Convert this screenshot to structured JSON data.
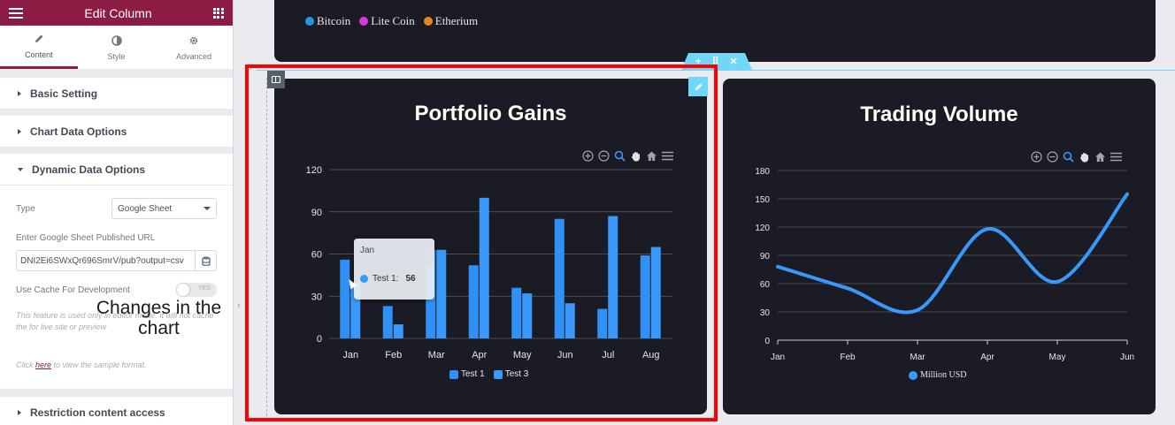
{
  "panel": {
    "title": "Edit Column",
    "tabs": [
      {
        "label": "Content",
        "icon": "pencil-icon"
      },
      {
        "label": "Style",
        "icon": "half-circle-icon"
      },
      {
        "label": "Advanced",
        "icon": "gear-icon"
      }
    ],
    "sections": {
      "basic": "Basic Setting",
      "chart_data": "Chart Data Options",
      "dynamic": "Dynamic Data Options",
      "restriction": "Restriction content access"
    },
    "type_label": "Type",
    "type_value": "Google Sheet",
    "url_label": "Enter Google Sheet Published URL",
    "url_value": "DNI2Ei6SWxQr696SmrV/pub?output=csv",
    "cache_label": "Use Cache For Development",
    "cache_toggle": "YES",
    "help_text": "This feature is used only in editor mode. It will not cache the for live site or preview",
    "sample_prefix": "Click ",
    "sample_link": "here",
    "sample_suffix": " to view the sample format."
  },
  "overlay_caption": "Changes in the chart",
  "top_legend": [
    {
      "label": "Bitcoin",
      "color": "#2596e8"
    },
    {
      "label": "Lite Coin",
      "color": "#d83ad8"
    },
    {
      "label": "Etherium",
      "color": "#e08a1e"
    }
  ],
  "tooltip": {
    "title": "Jan",
    "series": "Test 1:",
    "value": "56"
  },
  "chart_data": [
    {
      "type": "bar",
      "title": "Portfolio Gains",
      "categories": [
        "Jan",
        "Feb",
        "Mar",
        "Apr",
        "May",
        "Jun",
        "Jul",
        "Aug"
      ],
      "ylim": [
        0,
        120
      ],
      "yticks": [
        "0",
        "30",
        "60",
        "90",
        "120"
      ],
      "series": [
        {
          "name": "Test 1",
          "values": [
            56,
            23,
            63,
            52,
            36,
            85,
            21,
            59
          ],
          "color": "#2f90f6"
        },
        {
          "name": "Test 3",
          "values": [
            40,
            10,
            63,
            100,
            32,
            25,
            87,
            65
          ],
          "color": "#3a98fa"
        }
      ]
    },
    {
      "type": "line",
      "title": "Trading Volume",
      "categories": [
        "Jan",
        "Feb",
        "Mar",
        "Apr",
        "May",
        "Jun"
      ],
      "ylim": [
        0,
        180
      ],
      "yticks": [
        "0",
        "30",
        "60",
        "90",
        "120",
        "150",
        "180"
      ],
      "series": [
        {
          "name": "Million USD",
          "values": [
            78,
            55,
            32,
            118,
            62,
            155
          ],
          "color": "#3a98fa"
        }
      ]
    }
  ]
}
